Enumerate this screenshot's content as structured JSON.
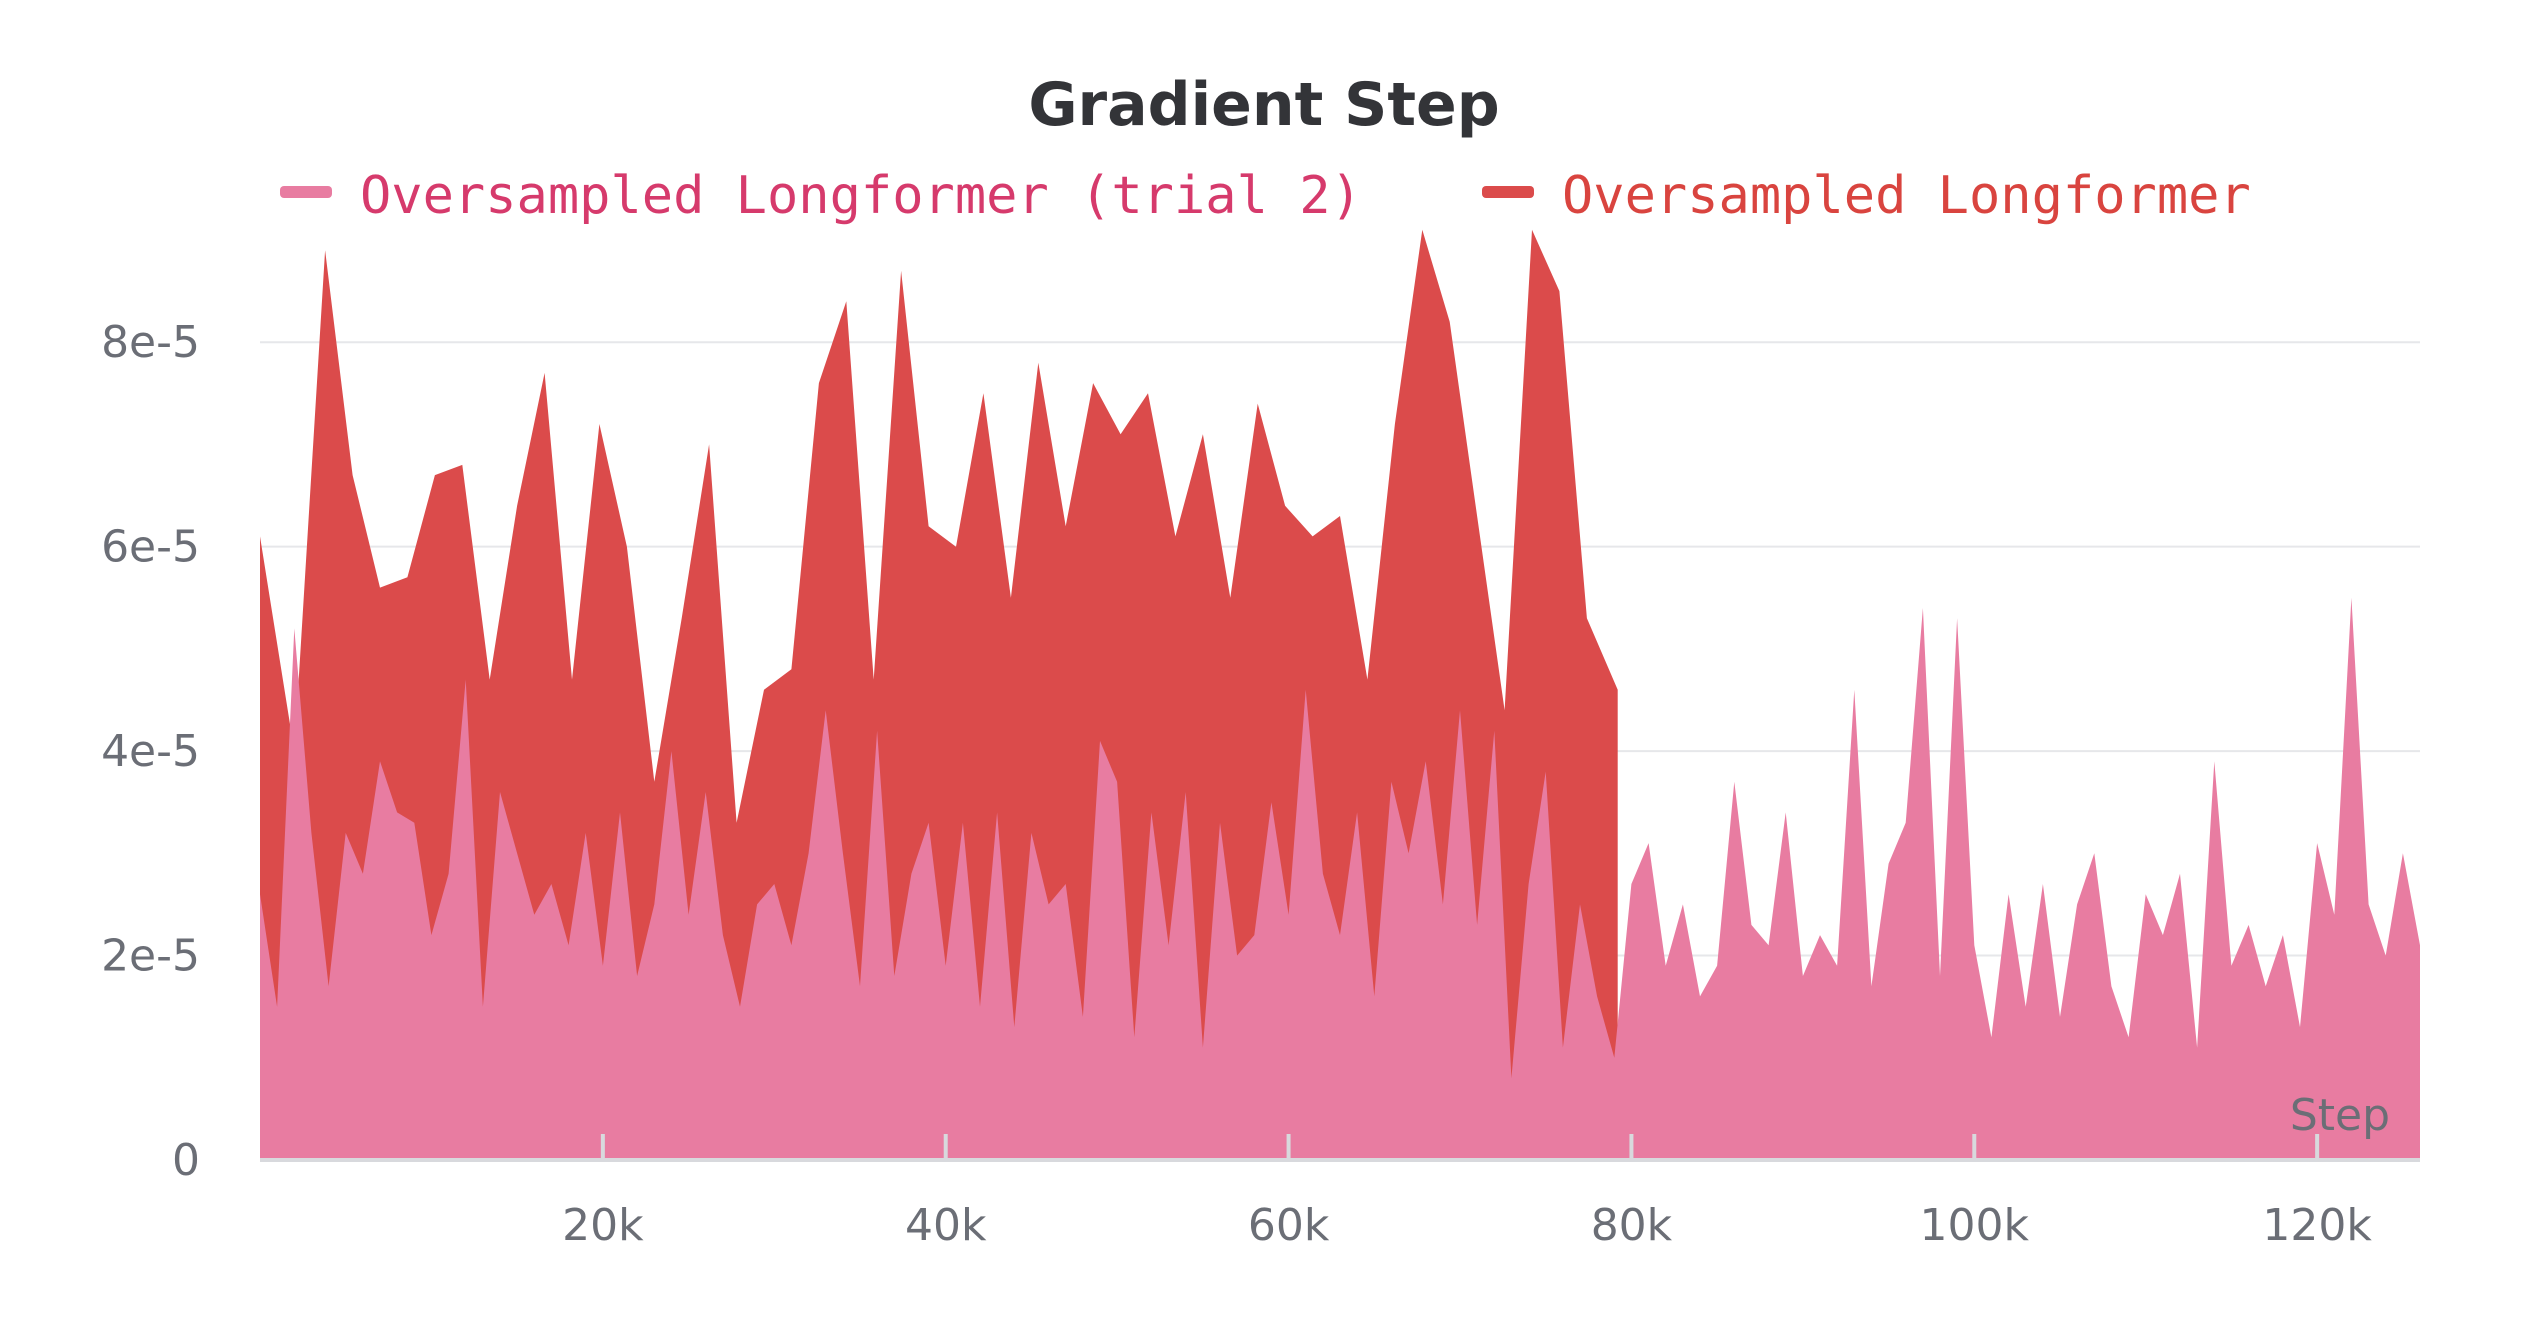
{
  "chart_data": {
    "type": "area",
    "title": "Gradient Step",
    "xlabel": "Step",
    "ylabel": "",
    "xlim": [
      0,
      126000
    ],
    "ylim": [
      0,
      9e-05
    ],
    "x_ticks": [
      {
        "value": 20000,
        "label": "20k"
      },
      {
        "value": 40000,
        "label": "40k"
      },
      {
        "value": 60000,
        "label": "60k"
      },
      {
        "value": 80000,
        "label": "80k"
      },
      {
        "value": 100000,
        "label": "100k"
      },
      {
        "value": 120000,
        "label": "120k"
      }
    ],
    "y_ticks": [
      {
        "value": 0,
        "label": "0"
      },
      {
        "value": 2e-05,
        "label": "2e-5"
      },
      {
        "value": 4e-05,
        "label": "4e-5"
      },
      {
        "value": 6e-05,
        "label": "6e-5"
      },
      {
        "value": 8e-05,
        "label": "8e-5"
      }
    ],
    "grid": true,
    "legend_position": "top",
    "series": [
      {
        "name": "Oversampled Longformer",
        "color": "#db4b4b",
        "x": [
          0,
          2000,
          3800,
          5400,
          7000,
          8600,
          10200,
          11800,
          13400,
          15000,
          16600,
          18200,
          19800,
          21400,
          23000,
          24600,
          26200,
          27800,
          29400,
          31000,
          32600,
          34200,
          35800,
          37400,
          39000,
          40600,
          42200,
          43800,
          45400,
          47000,
          48600,
          50200,
          51800,
          53400,
          55000,
          56600,
          58200,
          59800,
          61400,
          63000,
          64600,
          66200,
          67800,
          69400,
          71000,
          72600,
          74200,
          75800,
          77400,
          79200
        ],
        "y": [
          6.1e-05,
          4e-05,
          8.9e-05,
          6.7e-05,
          5.6e-05,
          5.7e-05,
          6.7e-05,
          6.8e-05,
          4.7e-05,
          6.4e-05,
          7.7e-05,
          4.7e-05,
          7.2e-05,
          6e-05,
          3.7e-05,
          5.3e-05,
          7e-05,
          3.3e-05,
          4.6e-05,
          4.8e-05,
          7.6e-05,
          8.4e-05,
          4.7e-05,
          8.7e-05,
          6.2e-05,
          6e-05,
          7.5e-05,
          5.5e-05,
          7.8e-05,
          6.2e-05,
          7.6e-05,
          7.1e-05,
          7.5e-05,
          6.1e-05,
          7.1e-05,
          5.5e-05,
          7.4e-05,
          6.4e-05,
          6.1e-05,
          6.3e-05,
          4.7e-05,
          7.2e-05,
          9.1e-05,
          8.2e-05,
          6.3e-05,
          4.4e-05,
          9.1e-05,
          8.5e-05,
          5.3e-05,
          4.6e-05
        ]
      },
      {
        "name": "Oversampled Longformer (trial 2)",
        "color": "#e87ca1",
        "x": [
          0,
          1000,
          2000,
          3000,
          4000,
          5000,
          6000,
          7000,
          8000,
          9000,
          10000,
          11000,
          12000,
          13000,
          14000,
          15000,
          16000,
          17000,
          18000,
          19000,
          20000,
          21000,
          22000,
          23000,
          24000,
          25000,
          26000,
          27000,
          28000,
          29000,
          30000,
          31000,
          32000,
          33000,
          34000,
          35000,
          36000,
          37000,
          38000,
          39000,
          40000,
          41000,
          42000,
          43000,
          44000,
          45000,
          46000,
          47000,
          48000,
          49000,
          50000,
          51000,
          52000,
          53000,
          54000,
          55000,
          56000,
          57000,
          58000,
          59000,
          60000,
          61000,
          62000,
          63000,
          64000,
          65000,
          66000,
          67000,
          68000,
          69000,
          70000,
          71000,
          72000,
          73000,
          74000,
          75000,
          76000,
          77000,
          78000,
          79000,
          80000,
          81000,
          82000,
          83000,
          84000,
          85000,
          86000,
          87000,
          88000,
          89000,
          90000,
          91000,
          92000,
          93000,
          94000,
          95000,
          96000,
          97000,
          98000,
          99000,
          100000,
          101000,
          102000,
          103000,
          104000,
          105000,
          106000,
          107000,
          108000,
          109000,
          110000,
          111000,
          112000,
          113000,
          114000,
          115000,
          116000,
          117000,
          118000,
          119000,
          120000,
          121000,
          122000,
          123000,
          124000,
          125000,
          126000
        ],
        "y": [
          2.6e-05,
          1.5e-05,
          5.2e-05,
          3.2e-05,
          1.7e-05,
          3.2e-05,
          2.8e-05,
          3.9e-05,
          3.4e-05,
          3.3e-05,
          2.2e-05,
          2.8e-05,
          4.7e-05,
          1.5e-05,
          3.6e-05,
          3e-05,
          2.4e-05,
          2.7e-05,
          2.1e-05,
          3.2e-05,
          1.9e-05,
          3.4e-05,
          1.8e-05,
          2.5e-05,
          4e-05,
          2.4e-05,
          3.6e-05,
          2.2e-05,
          1.5e-05,
          2.5e-05,
          2.7e-05,
          2.1e-05,
          3e-05,
          4.4e-05,
          3e-05,
          1.7e-05,
          4.2e-05,
          1.8e-05,
          2.8e-05,
          3.3e-05,
          1.9e-05,
          3.3e-05,
          1.5e-05,
          3.4e-05,
          1.3e-05,
          3.2e-05,
          2.5e-05,
          2.7e-05,
          1.4e-05,
          4.1e-05,
          3.7e-05,
          1.2e-05,
          3.4e-05,
          2.1e-05,
          3.6e-05,
          1.1e-05,
          3.3e-05,
          2e-05,
          2.2e-05,
          3.5e-05,
          2.4e-05,
          4.6e-05,
          2.8e-05,
          2.2e-05,
          3.4e-05,
          1.6e-05,
          3.7e-05,
          3e-05,
          3.9e-05,
          2.5e-05,
          4.4e-05,
          2.3e-05,
          4.2e-05,
          8e-06,
          2.7e-05,
          3.8e-05,
          1.1e-05,
          2.5e-05,
          1.6e-05,
          1e-05,
          2.7e-05,
          3.1e-05,
          1.9e-05,
          2.5e-05,
          1.6e-05,
          1.9e-05,
          3.7e-05,
          2.3e-05,
          2.1e-05,
          3.4e-05,
          1.8e-05,
          2.2e-05,
          1.9e-05,
          4.6e-05,
          1.7e-05,
          2.9e-05,
          3.3e-05,
          5.4e-05,
          1.8e-05,
          5.3e-05,
          2.1e-05,
          1.2e-05,
          2.6e-05,
          1.5e-05,
          2.7e-05,
          1.4e-05,
          2.5e-05,
          3e-05,
          1.7e-05,
          1.2e-05,
          2.6e-05,
          2.2e-05,
          2.8e-05,
          1.1e-05,
          3.9e-05,
          1.9e-05,
          2.3e-05,
          1.7e-05,
          2.2e-05,
          1.3e-05,
          3.1e-05,
          2.4e-05,
          5.5e-05,
          2.5e-05,
          2e-05,
          3e-05,
          2.1e-05
        ]
      }
    ]
  },
  "legend": [
    {
      "label": "Oversampled Longformer (trial 2)",
      "color": "#e87ca1",
      "text_color": "#d63a6c"
    },
    {
      "label": "Oversampled Longformer",
      "color": "#db4b4b",
      "text_color": "#d9443f"
    }
  ],
  "colors": {
    "grid": "#e6e7ea",
    "axis": "#d8d9dd",
    "tick_text": "#6b6e76",
    "title": "#333438"
  }
}
